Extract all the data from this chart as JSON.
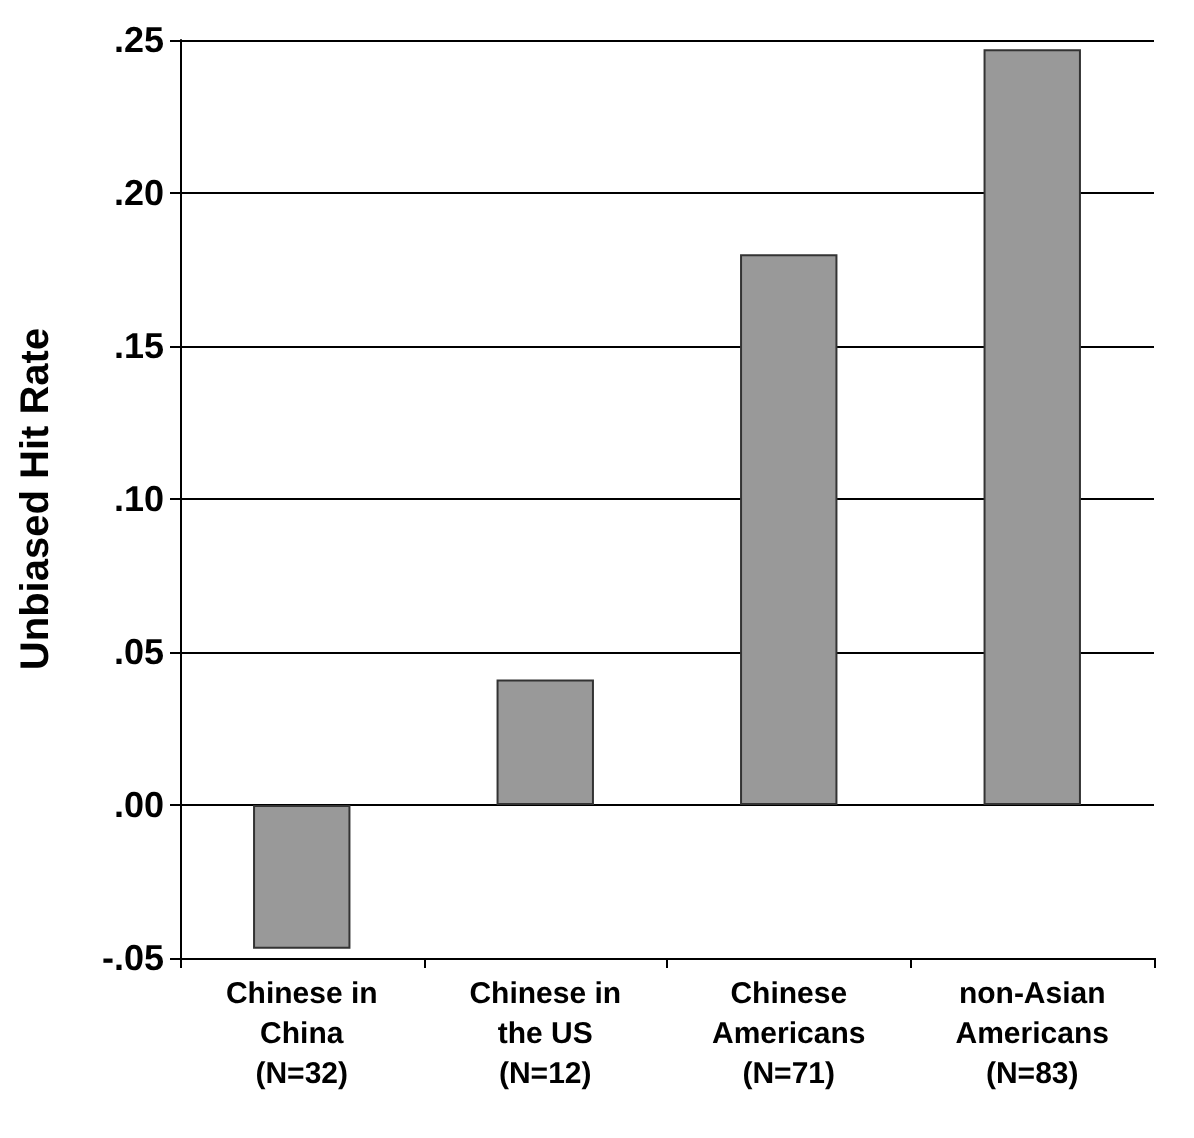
{
  "chart_data": {
    "type": "bar",
    "ylabel": "Unbiased Hit Rate",
    "categories": [
      "Chinese in\nChina\n(N=32)",
      "Chinese in\nthe US\n(N=12)",
      "Chinese\nAmericans\n(N=71)",
      "non-Asian\nAmericans\n(N=83)"
    ],
    "values": [
      -0.047,
      0.041,
      0.18,
      0.247
    ],
    "color": "#999999",
    "ylim": [
      -0.05,
      0.25
    ],
    "yticks": [
      {
        "value": -0.05,
        "label": "-.05"
      },
      {
        "value": 0,
        "label": ".00"
      },
      {
        "value": 0.05,
        "label": ".05"
      },
      {
        "value": 0.1,
        "label": ".10"
      },
      {
        "value": 0.15,
        "label": ".15"
      },
      {
        "value": 0.2,
        "label": ".20"
      },
      {
        "value": 0.25,
        "label": ".25"
      }
    ],
    "grid": "y"
  }
}
